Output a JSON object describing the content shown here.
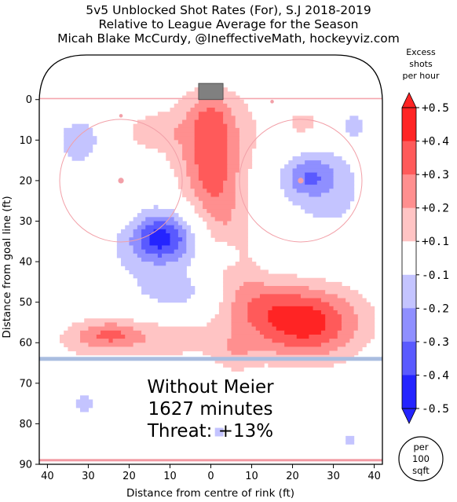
{
  "chart_data": {
    "type": "heatmap",
    "title": [
      "5v5 Unblocked Shot Rates (For), S.J 2018-2019",
      "Relative to League Average for the Season",
      "Micah Blake McCurdy, @IneffectiveMath, hockeyviz.com"
    ],
    "xlabel": "Distance from centre of rink (ft)",
    "ylabel": "Distance from goal line (ft)",
    "xlim": [
      -42,
      42
    ],
    "ylim": [
      -11,
      90
    ],
    "x_ticks": [
      40,
      30,
      20,
      10,
      0,
      10,
      20,
      30,
      40
    ],
    "y_ticks": [
      0,
      10,
      20,
      30,
      40,
      50,
      60,
      70,
      80,
      90
    ],
    "colorbar": {
      "title": [
        "Excess",
        "shots",
        "per hour"
      ],
      "ticks": [
        "+0.5",
        "+0.4",
        "+0.3",
        "+0.2",
        "+0.1",
        "-0.1",
        "-0.2",
        "-0.3",
        "-0.4",
        "-0.5"
      ],
      "levels": [
        0.5,
        0.4,
        0.3,
        0.2,
        0.1,
        -0.1,
        -0.2,
        -0.3,
        -0.4,
        -0.5
      ],
      "colors_pos": [
        "#ffc4c4",
        "#ff8f8f",
        "#ff5a5a",
        "#ff2424"
      ],
      "colors_neg": [
        "#c4c4ff",
        "#8f8fff",
        "#5a5aff",
        "#2424ff"
      ]
    },
    "annotation": [
      "Without Meier",
      "1627 minutes",
      "Threat: +13%"
    ],
    "unit_badge": [
      "per",
      "100",
      "sqft"
    ],
    "blobs": [
      {
        "x": 0,
        "y": 8,
        "sx": 9,
        "sy": 8,
        "a": 0.2
      },
      {
        "x": 0,
        "y": 20,
        "sx": 5,
        "sy": 8,
        "a": 0.27
      },
      {
        "x": 0,
        "y": 4,
        "sx": 3.5,
        "sy": 4,
        "a": 0.14
      },
      {
        "x": 5,
        "y": 36,
        "sx": 4.5,
        "sy": 9,
        "a": 0.17
      },
      {
        "x": -15,
        "y": 8,
        "sx": 5,
        "sy": 3,
        "a": 0.12
      },
      {
        "x": 23,
        "y": 6,
        "sx": 4,
        "sy": 3,
        "a": 0.14
      },
      {
        "x": -23,
        "y": 27,
        "sx": 3,
        "sy": 3,
        "a": 0.12
      },
      {
        "x": 23,
        "y": 55,
        "sx": 10,
        "sy": 6.5,
        "a": 0.46
      },
      {
        "x": 11,
        "y": 50,
        "sx": 6,
        "sy": 5,
        "a": 0.14
      },
      {
        "x": -24,
        "y": 58,
        "sx": 5,
        "sy": 2.5,
        "a": 0.22
      },
      {
        "x": -12,
        "y": 59,
        "sx": 11,
        "sy": 4,
        "a": 0.16
      },
      {
        "x": -32,
        "y": 59,
        "sx": 5,
        "sy": 3.5,
        "a": 0.12
      },
      {
        "x": 6,
        "y": 63,
        "sx": 4,
        "sy": 3.5,
        "a": 0.12
      },
      {
        "x": -12,
        "y": 34,
        "sx": 5,
        "sy": 4,
        "a": -0.35
      },
      {
        "x": -14,
        "y": 38,
        "sx": 10,
        "sy": 9,
        "a": -0.12
      },
      {
        "x": -7,
        "y": 48,
        "sx": 7,
        "sy": 3,
        "a": -0.09
      },
      {
        "x": 24,
        "y": 19,
        "sx": 4.5,
        "sy": 3.5,
        "a": -0.23
      },
      {
        "x": 29,
        "y": 23,
        "sx": 9,
        "sy": 10,
        "a": -0.12
      },
      {
        "x": -32,
        "y": 9,
        "sx": 5,
        "sy": 4,
        "a": -0.12
      },
      {
        "x": -33,
        "y": 20,
        "sx": 4,
        "sy": 7,
        "a": -0.08
      },
      {
        "x": 4,
        "y": 38,
        "sx": 2.5,
        "sy": 2.5,
        "a": -0.12
      },
      {
        "x": 35,
        "y": 6,
        "sx": 3,
        "sy": 3,
        "a": -0.1
      },
      {
        "x": -31,
        "y": 75,
        "sx": 2.5,
        "sy": 2.5,
        "a": -0.14
      },
      {
        "x": 34,
        "y": 84,
        "sx": 1.5,
        "sy": 1.5,
        "a": -0.15
      },
      {
        "x": 2,
        "y": 82,
        "sx": 1.5,
        "sy": 1.5,
        "a": -0.15
      }
    ]
  }
}
